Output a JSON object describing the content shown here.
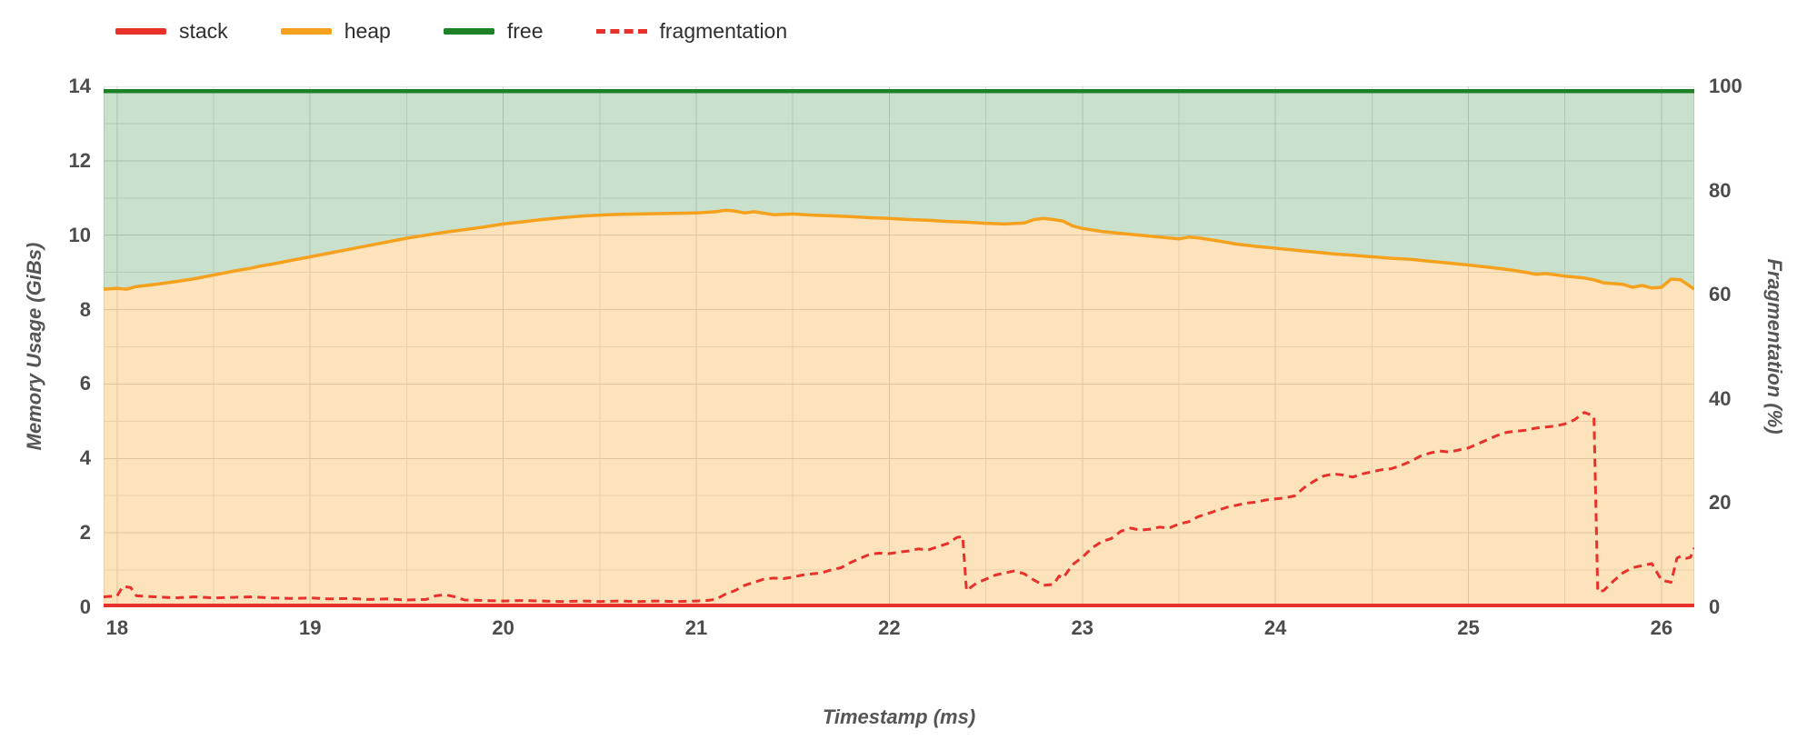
{
  "legend": {
    "items": [
      {
        "label": "stack",
        "color": "#e8312a",
        "style": "solid"
      },
      {
        "label": "heap",
        "color": "#f5a11e",
        "style": "solid"
      },
      {
        "label": "free",
        "color": "#1e8128",
        "style": "solid"
      },
      {
        "label": "fragmentation",
        "color": "#e8312a",
        "style": "dashed"
      }
    ]
  },
  "chart_data": {
    "type": "area",
    "xlabel": "Timestamp (ms)",
    "ylabel_left": "Memory Usage (GiBs)",
    "ylabel_right": "Fragmentation (%)",
    "xlim": [
      17.93,
      26.17
    ],
    "ylim_left": [
      0,
      14
    ],
    "ylim_right": [
      0,
      100
    ],
    "xticks": [
      18,
      19,
      20,
      21,
      22,
      23,
      24,
      25,
      26
    ],
    "yticks_left": [
      0,
      2,
      4,
      6,
      8,
      10,
      12,
      14
    ],
    "yticks_right": [
      0,
      20,
      40,
      60,
      80,
      100
    ],
    "grid": {
      "x_minor_step": 0.5,
      "y_minor_step": 1,
      "color_minor": "#e2e2e2",
      "color_major": "#d4d4d4"
    },
    "series": [
      {
        "name": "stack",
        "axis": "left",
        "color": "#e8312a",
        "style": "solid",
        "width": 4,
        "points": [
          [
            17.93,
            0.05
          ],
          [
            26.17,
            0.05
          ]
        ]
      },
      {
        "name": "heap",
        "axis": "left",
        "color": "#f5a11e",
        "style": "solid",
        "width": 3.5,
        "fill": "rgba(245,161,30,0.30)",
        "points": [
          [
            17.93,
            8.55
          ],
          [
            18.0,
            8.57
          ],
          [
            18.05,
            8.55
          ],
          [
            18.1,
            8.62
          ],
          [
            18.2,
            8.68
          ],
          [
            18.3,
            8.75
          ],
          [
            18.4,
            8.83
          ],
          [
            18.5,
            8.93
          ],
          [
            18.6,
            9.03
          ],
          [
            18.7,
            9.12
          ],
          [
            18.75,
            9.18
          ],
          [
            18.8,
            9.22
          ],
          [
            18.9,
            9.32
          ],
          [
            19.0,
            9.42
          ],
          [
            19.1,
            9.52
          ],
          [
            19.2,
            9.62
          ],
          [
            19.3,
            9.72
          ],
          [
            19.4,
            9.82
          ],
          [
            19.5,
            9.92
          ],
          [
            19.6,
            10.0
          ],
          [
            19.7,
            10.08
          ],
          [
            19.8,
            10.15
          ],
          [
            19.9,
            10.22
          ],
          [
            20.0,
            10.3
          ],
          [
            20.1,
            10.36
          ],
          [
            20.2,
            10.42
          ],
          [
            20.3,
            10.47
          ],
          [
            20.4,
            10.51
          ],
          [
            20.5,
            10.54
          ],
          [
            20.6,
            10.56
          ],
          [
            20.7,
            10.57
          ],
          [
            20.8,
            10.58
          ],
          [
            20.9,
            10.59
          ],
          [
            21.0,
            10.6
          ],
          [
            21.1,
            10.63
          ],
          [
            21.15,
            10.67
          ],
          [
            21.2,
            10.65
          ],
          [
            21.25,
            10.6
          ],
          [
            21.3,
            10.63
          ],
          [
            21.4,
            10.55
          ],
          [
            21.5,
            10.57
          ],
          [
            21.6,
            10.54
          ],
          [
            21.7,
            10.52
          ],
          [
            21.8,
            10.5
          ],
          [
            21.9,
            10.47
          ],
          [
            22.0,
            10.45
          ],
          [
            22.1,
            10.42
          ],
          [
            22.2,
            10.4
          ],
          [
            22.3,
            10.37
          ],
          [
            22.4,
            10.35
          ],
          [
            22.5,
            10.32
          ],
          [
            22.6,
            10.3
          ],
          [
            22.7,
            10.33
          ],
          [
            22.75,
            10.42
          ],
          [
            22.8,
            10.45
          ],
          [
            22.85,
            10.42
          ],
          [
            22.9,
            10.38
          ],
          [
            22.95,
            10.25
          ],
          [
            23.0,
            10.18
          ],
          [
            23.1,
            10.1
          ],
          [
            23.2,
            10.05
          ],
          [
            23.3,
            10.0
          ],
          [
            23.4,
            9.95
          ],
          [
            23.5,
            9.9
          ],
          [
            23.55,
            9.95
          ],
          [
            23.6,
            9.93
          ],
          [
            23.7,
            9.85
          ],
          [
            23.8,
            9.76
          ],
          [
            23.9,
            9.7
          ],
          [
            24.0,
            9.65
          ],
          [
            24.1,
            9.6
          ],
          [
            24.2,
            9.55
          ],
          [
            24.3,
            9.5
          ],
          [
            24.4,
            9.46
          ],
          [
            24.5,
            9.42
          ],
          [
            24.6,
            9.38
          ],
          [
            24.7,
            9.35
          ],
          [
            24.8,
            9.3
          ],
          [
            24.9,
            9.25
          ],
          [
            25.0,
            9.2
          ],
          [
            25.1,
            9.14
          ],
          [
            25.2,
            9.08
          ],
          [
            25.3,
            9.0
          ],
          [
            25.35,
            8.95
          ],
          [
            25.4,
            8.97
          ],
          [
            25.5,
            8.9
          ],
          [
            25.6,
            8.85
          ],
          [
            25.65,
            8.8
          ],
          [
            25.7,
            8.72
          ],
          [
            25.8,
            8.68
          ],
          [
            25.85,
            8.6
          ],
          [
            25.9,
            8.65
          ],
          [
            25.95,
            8.58
          ],
          [
            26.0,
            8.6
          ],
          [
            26.05,
            8.82
          ],
          [
            26.1,
            8.8
          ],
          [
            26.15,
            8.62
          ],
          [
            26.17,
            8.55
          ]
        ]
      },
      {
        "name": "free",
        "axis": "left",
        "color": "#1e8128",
        "style": "solid",
        "width": 4.5,
        "fill": "rgba(30,129,40,0.24)",
        "points": [
          [
            17.93,
            13.87
          ],
          [
            26.17,
            13.87
          ]
        ]
      },
      {
        "name": "fragmentation",
        "axis": "right",
        "color": "#e8312a",
        "style": "dashed",
        "width": 3,
        "points": [
          [
            17.93,
            2.0
          ],
          [
            18.0,
            2.2
          ],
          [
            18.03,
            4.0
          ],
          [
            18.07,
            3.8
          ],
          [
            18.1,
            2.2
          ],
          [
            18.2,
            2.0
          ],
          [
            18.3,
            1.8
          ],
          [
            18.4,
            2.0
          ],
          [
            18.5,
            1.8
          ],
          [
            18.6,
            1.9
          ],
          [
            18.7,
            2.0
          ],
          [
            18.8,
            1.8
          ],
          [
            18.9,
            1.7
          ],
          [
            19.0,
            1.8
          ],
          [
            19.1,
            1.6
          ],
          [
            19.2,
            1.7
          ],
          [
            19.3,
            1.5
          ],
          [
            19.4,
            1.6
          ],
          [
            19.5,
            1.4
          ],
          [
            19.6,
            1.5
          ],
          [
            19.65,
            2.2
          ],
          [
            19.7,
            2.4
          ],
          [
            19.75,
            2.0
          ],
          [
            19.8,
            1.4
          ],
          [
            19.9,
            1.3
          ],
          [
            20.0,
            1.2
          ],
          [
            20.1,
            1.3
          ],
          [
            20.2,
            1.2
          ],
          [
            20.3,
            1.1
          ],
          [
            20.4,
            1.2
          ],
          [
            20.5,
            1.1
          ],
          [
            20.6,
            1.2
          ],
          [
            20.7,
            1.1
          ],
          [
            20.8,
            1.2
          ],
          [
            20.9,
            1.1
          ],
          [
            21.0,
            1.2
          ],
          [
            21.05,
            1.3
          ],
          [
            21.1,
            1.5
          ],
          [
            21.15,
            2.5
          ],
          [
            21.2,
            3.2
          ],
          [
            21.25,
            4.2
          ],
          [
            21.3,
            4.8
          ],
          [
            21.35,
            5.4
          ],
          [
            21.4,
            5.6
          ],
          [
            21.45,
            5.5
          ],
          [
            21.5,
            5.8
          ],
          [
            21.55,
            6.2
          ],
          [
            21.6,
            6.4
          ],
          [
            21.65,
            6.6
          ],
          [
            21.7,
            7.2
          ],
          [
            21.75,
            7.6
          ],
          [
            21.8,
            8.6
          ],
          [
            21.85,
            9.4
          ],
          [
            21.9,
            10.2
          ],
          [
            21.95,
            10.4
          ],
          [
            22.0,
            10.3
          ],
          [
            22.05,
            10.6
          ],
          [
            22.1,
            10.8
          ],
          [
            22.15,
            11.2
          ],
          [
            22.2,
            11.0
          ],
          [
            22.25,
            11.6
          ],
          [
            22.3,
            12.2
          ],
          [
            22.35,
            13.4
          ],
          [
            22.38,
            13.6
          ],
          [
            22.4,
            3.2
          ],
          [
            22.45,
            4.6
          ],
          [
            22.5,
            5.4
          ],
          [
            22.55,
            6.2
          ],
          [
            22.6,
            6.6
          ],
          [
            22.65,
            7.0
          ],
          [
            22.7,
            6.4
          ],
          [
            22.75,
            5.2
          ],
          [
            22.8,
            4.2
          ],
          [
            22.85,
            4.4
          ],
          [
            22.88,
            6.0
          ],
          [
            22.9,
            5.6
          ],
          [
            22.95,
            8.2
          ],
          [
            23.0,
            9.6
          ],
          [
            23.05,
            11.4
          ],
          [
            23.1,
            12.6
          ],
          [
            23.15,
            13.2
          ],
          [
            23.2,
            14.6
          ],
          [
            23.25,
            15.2
          ],
          [
            23.3,
            14.8
          ],
          [
            23.35,
            15.0
          ],
          [
            23.4,
            15.4
          ],
          [
            23.45,
            15.2
          ],
          [
            23.5,
            16.0
          ],
          [
            23.55,
            16.4
          ],
          [
            23.6,
            17.4
          ],
          [
            23.65,
            18.0
          ],
          [
            23.7,
            18.6
          ],
          [
            23.75,
            19.2
          ],
          [
            23.8,
            19.6
          ],
          [
            23.85,
            20.0
          ],
          [
            23.9,
            20.2
          ],
          [
            23.95,
            20.6
          ],
          [
            24.0,
            20.8
          ],
          [
            24.05,
            21.0
          ],
          [
            24.1,
            21.4
          ],
          [
            24.15,
            23.0
          ],
          [
            24.2,
            24.2
          ],
          [
            24.25,
            25.2
          ],
          [
            24.3,
            25.6
          ],
          [
            24.35,
            25.4
          ],
          [
            24.4,
            25.0
          ],
          [
            24.45,
            25.6
          ],
          [
            24.5,
            26.0
          ],
          [
            24.55,
            26.4
          ],
          [
            24.6,
            26.6
          ],
          [
            24.65,
            27.2
          ],
          [
            24.7,
            28.0
          ],
          [
            24.75,
            29.0
          ],
          [
            24.8,
            29.6
          ],
          [
            24.85,
            30.0
          ],
          [
            24.9,
            29.8
          ],
          [
            24.95,
            30.2
          ],
          [
            25.0,
            30.6
          ],
          [
            25.05,
            31.4
          ],
          [
            25.1,
            32.2
          ],
          [
            25.15,
            33.0
          ],
          [
            25.2,
            33.6
          ],
          [
            25.25,
            33.8
          ],
          [
            25.3,
            34.0
          ],
          [
            25.35,
            34.4
          ],
          [
            25.4,
            34.6
          ],
          [
            25.45,
            34.8
          ],
          [
            25.5,
            35.2
          ],
          [
            25.55,
            36.0
          ],
          [
            25.6,
            37.4
          ],
          [
            25.63,
            37.0
          ],
          [
            25.65,
            36.6
          ],
          [
            25.67,
            3.0
          ],
          [
            25.7,
            3.2
          ],
          [
            25.75,
            5.0
          ],
          [
            25.8,
            6.6
          ],
          [
            25.85,
            7.6
          ],
          [
            25.9,
            8.0
          ],
          [
            25.95,
            8.4
          ],
          [
            26.0,
            5.2
          ],
          [
            26.05,
            4.8
          ],
          [
            26.08,
            9.4
          ],
          [
            26.1,
            9.8
          ],
          [
            26.13,
            9.4
          ],
          [
            26.15,
            9.6
          ],
          [
            26.17,
            11.4
          ]
        ]
      }
    ]
  }
}
